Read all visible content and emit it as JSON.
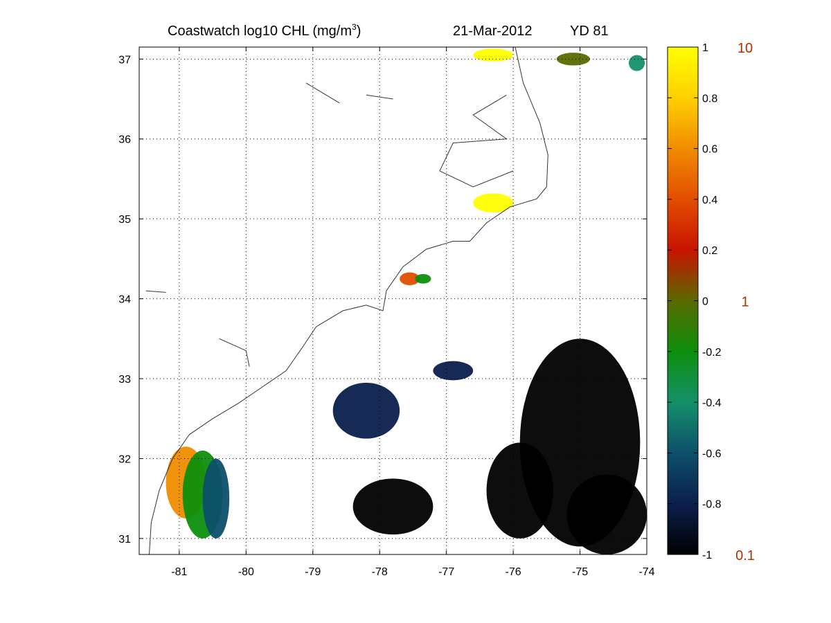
{
  "title": {
    "prefix": "Coastwatch  log10  CHL (mg/m",
    "sup": "3",
    "suffix": ")",
    "date": "21-Mar-2012",
    "yearday": "YD 81"
  },
  "chart_data": {
    "type": "heatmap",
    "map_type": "satellite chlorophyll field with coastline",
    "xlim": [
      -81.6,
      -74
    ],
    "ylim": [
      30.8,
      37.15
    ],
    "x_ticks": [
      -81,
      -80,
      -79,
      -78,
      -77,
      -76,
      -75,
      -74
    ],
    "x_tick_labels": [
      "-81",
      "-80",
      "-79",
      "-78",
      "-77",
      "-76",
      "-75",
      "-74"
    ],
    "y_ticks": [
      31,
      32,
      33,
      34,
      35,
      36,
      37
    ],
    "y_tick_labels": [
      "31",
      "32",
      "33",
      "34",
      "35",
      "36",
      "37"
    ],
    "grid": true,
    "colorbar": {
      "range": [
        -1,
        1
      ],
      "ticks": [
        1,
        0.8,
        0.6,
        0.4,
        0.2,
        0,
        -0.2,
        -0.4,
        -0.6,
        -0.8,
        -1
      ],
      "tick_labels": [
        "1",
        "0.8",
        "0.6",
        "0.4",
        "0.2",
        "0",
        "-0.2",
        "-0.4",
        "-0.6",
        "-0.8",
        "-1"
      ],
      "colors": [
        "#000000",
        "#0b1f4d",
        "#0d4f6a",
        "#14906a",
        "#0d8f0d",
        "#5a6a00",
        "#c81400",
        "#e24e00",
        "#f08c00",
        "#ffd000",
        "#ffff00"
      ],
      "right_labels": [
        {
          "value": 1,
          "text": "10"
        },
        {
          "value": 0,
          "text": "1"
        },
        {
          "value": -1,
          "text": "0.1"
        }
      ],
      "right_label_color": "#b03000"
    },
    "coastline": [
      [
        -81.45,
        30.8
      ],
      [
        -81.42,
        31.2
      ],
      [
        -81.3,
        31.6
      ],
      [
        -81.1,
        32.0
      ],
      [
        -80.85,
        32.3
      ],
      [
        -80.5,
        32.5
      ],
      [
        -80.1,
        32.7
      ],
      [
        -79.75,
        32.9
      ],
      [
        -79.4,
        33.1
      ],
      [
        -79.15,
        33.4
      ],
      [
        -78.95,
        33.65
      ],
      [
        -78.55,
        33.85
      ],
      [
        -78.2,
        33.92
      ],
      [
        -77.95,
        33.85
      ],
      [
        -77.9,
        34.1
      ],
      [
        -77.65,
        34.4
      ],
      [
        -77.3,
        34.62
      ],
      [
        -76.9,
        34.72
      ],
      [
        -76.65,
        34.72
      ],
      [
        -76.4,
        34.95
      ],
      [
        -76.05,
        35.15
      ],
      [
        -75.65,
        35.25
      ],
      [
        -75.5,
        35.4
      ],
      [
        -75.48,
        35.8
      ],
      [
        -75.6,
        36.2
      ],
      [
        -75.85,
        36.7
      ],
      [
        -75.97,
        37.15
      ]
    ],
    "estuary_lines": [
      [
        [
          -76.1,
          36.55
        ],
        [
          -76.6,
          36.3
        ],
        [
          -76.1,
          36.0
        ],
        [
          -76.9,
          35.95
        ],
        [
          -77.1,
          35.6
        ],
        [
          -76.6,
          35.4
        ],
        [
          -76.0,
          35.6
        ]
      ],
      [
        [
          -79.1,
          36.7
        ],
        [
          -78.8,
          36.55
        ],
        [
          -78.6,
          36.45
        ]
      ],
      [
        [
          -78.2,
          36.55
        ],
        [
          -77.8,
          36.5
        ]
      ],
      [
        [
          -81.5,
          34.1
        ],
        [
          -81.2,
          34.08
        ]
      ],
      [
        [
          -80.4,
          33.5
        ],
        [
          -80.0,
          33.35
        ],
        [
          -79.95,
          33.15
        ]
      ]
    ],
    "chl_patches": [
      {
        "lon": -80.9,
        "lat": 31.7,
        "rx": 0.3,
        "ry": 0.45,
        "value": 0.55
      },
      {
        "lon": -80.65,
        "lat": 31.55,
        "rx": 0.3,
        "ry": 0.55,
        "value": -0.3
      },
      {
        "lon": -80.45,
        "lat": 31.5,
        "rx": 0.2,
        "ry": 0.5,
        "value": -0.65
      },
      {
        "lon": -77.55,
        "lat": 34.25,
        "rx": 0.15,
        "ry": 0.08,
        "value": 0.3
      },
      {
        "lon": -77.35,
        "lat": 34.25,
        "rx": 0.12,
        "ry": 0.06,
        "value": -0.25
      },
      {
        "lon": -76.3,
        "lat": 35.2,
        "rx": 0.3,
        "ry": 0.12,
        "value": 0.95
      },
      {
        "lon": -76.3,
        "lat": 37.05,
        "rx": 0.3,
        "ry": 0.08,
        "value": 0.95
      },
      {
        "lon": -75.1,
        "lat": 37.0,
        "rx": 0.25,
        "ry": 0.08,
        "value": -0.1
      },
      {
        "lon": -74.15,
        "lat": 36.95,
        "rx": 0.12,
        "ry": 0.1,
        "value": -0.35
      },
      {
        "lon": -78.2,
        "lat": 32.6,
        "rx": 0.5,
        "ry": 0.35,
        "value": -0.8
      },
      {
        "lon": -76.9,
        "lat": 33.1,
        "rx": 0.3,
        "ry": 0.12,
        "value": -0.85
      },
      {
        "lon": -75.0,
        "lat": 32.2,
        "rx": 0.9,
        "ry": 1.3,
        "value": -1
      },
      {
        "lon": -74.6,
        "lat": 31.3,
        "rx": 0.6,
        "ry": 0.5,
        "value": -1
      },
      {
        "lon": -77.8,
        "lat": 31.4,
        "rx": 0.6,
        "ry": 0.35,
        "value": -1
      },
      {
        "lon": -75.9,
        "lat": 31.6,
        "rx": 0.5,
        "ry": 0.6,
        "value": -1
      }
    ]
  }
}
